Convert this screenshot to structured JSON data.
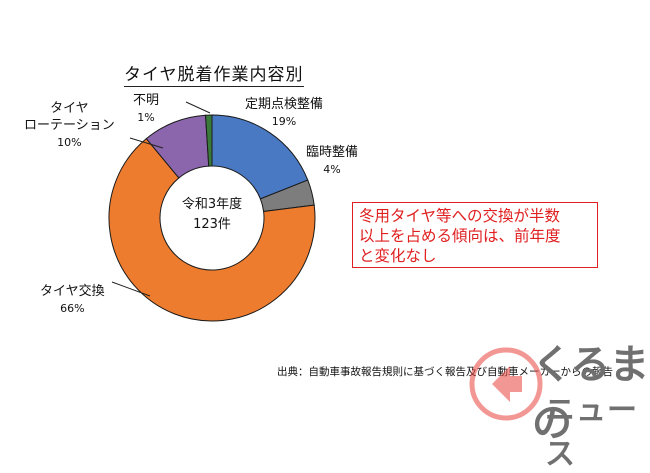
{
  "chart_data": {
    "type": "pie",
    "title": "タイヤ脱着作業内容別",
    "center_label": [
      "令和3年度",
      "123件"
    ],
    "slices": [
      {
        "label": "定期点検整備",
        "value": 19,
        "percent_label": "19%",
        "color": "#4a79c3"
      },
      {
        "label": "臨時整備",
        "value": 4,
        "percent_label": "4%",
        "color": "#7d7d7d"
      },
      {
        "label": "タイヤ交換",
        "value": 66,
        "percent_label": "66%",
        "color": "#ee7c2f"
      },
      {
        "label": "タイヤ\nローテーション",
        "value": 10,
        "percent_label": "10%",
        "color": "#8b66ad"
      },
      {
        "label": "不明",
        "value": 1,
        "percent_label": "1%",
        "color": "#3a7a3a"
      }
    ]
  },
  "labels": {
    "teiki": "定期点検整備",
    "rinji": "臨時整備",
    "koukan": "タイヤ交換",
    "rotation_1": "タイヤ",
    "rotation_2": "ローテーション",
    "fumei": "不明",
    "p19": "19%",
    "p4": "4%",
    "p66": "66%",
    "p10": "10%",
    "p1": "1%",
    "center_1": "令和3年度",
    "center_2": "123件"
  },
  "callout": {
    "line1": "冬用タイヤ等への交換が半数",
    "line2": "以上を占める傾向は、前年度",
    "line3": "と変化なし"
  },
  "source": "出典：自動車事故報告規則に基づく報告及び自動車メーカーからの報告",
  "logo": {
    "line1": "くるまの",
    "line2": "ニュース",
    "accent_color": "#e8413c"
  }
}
